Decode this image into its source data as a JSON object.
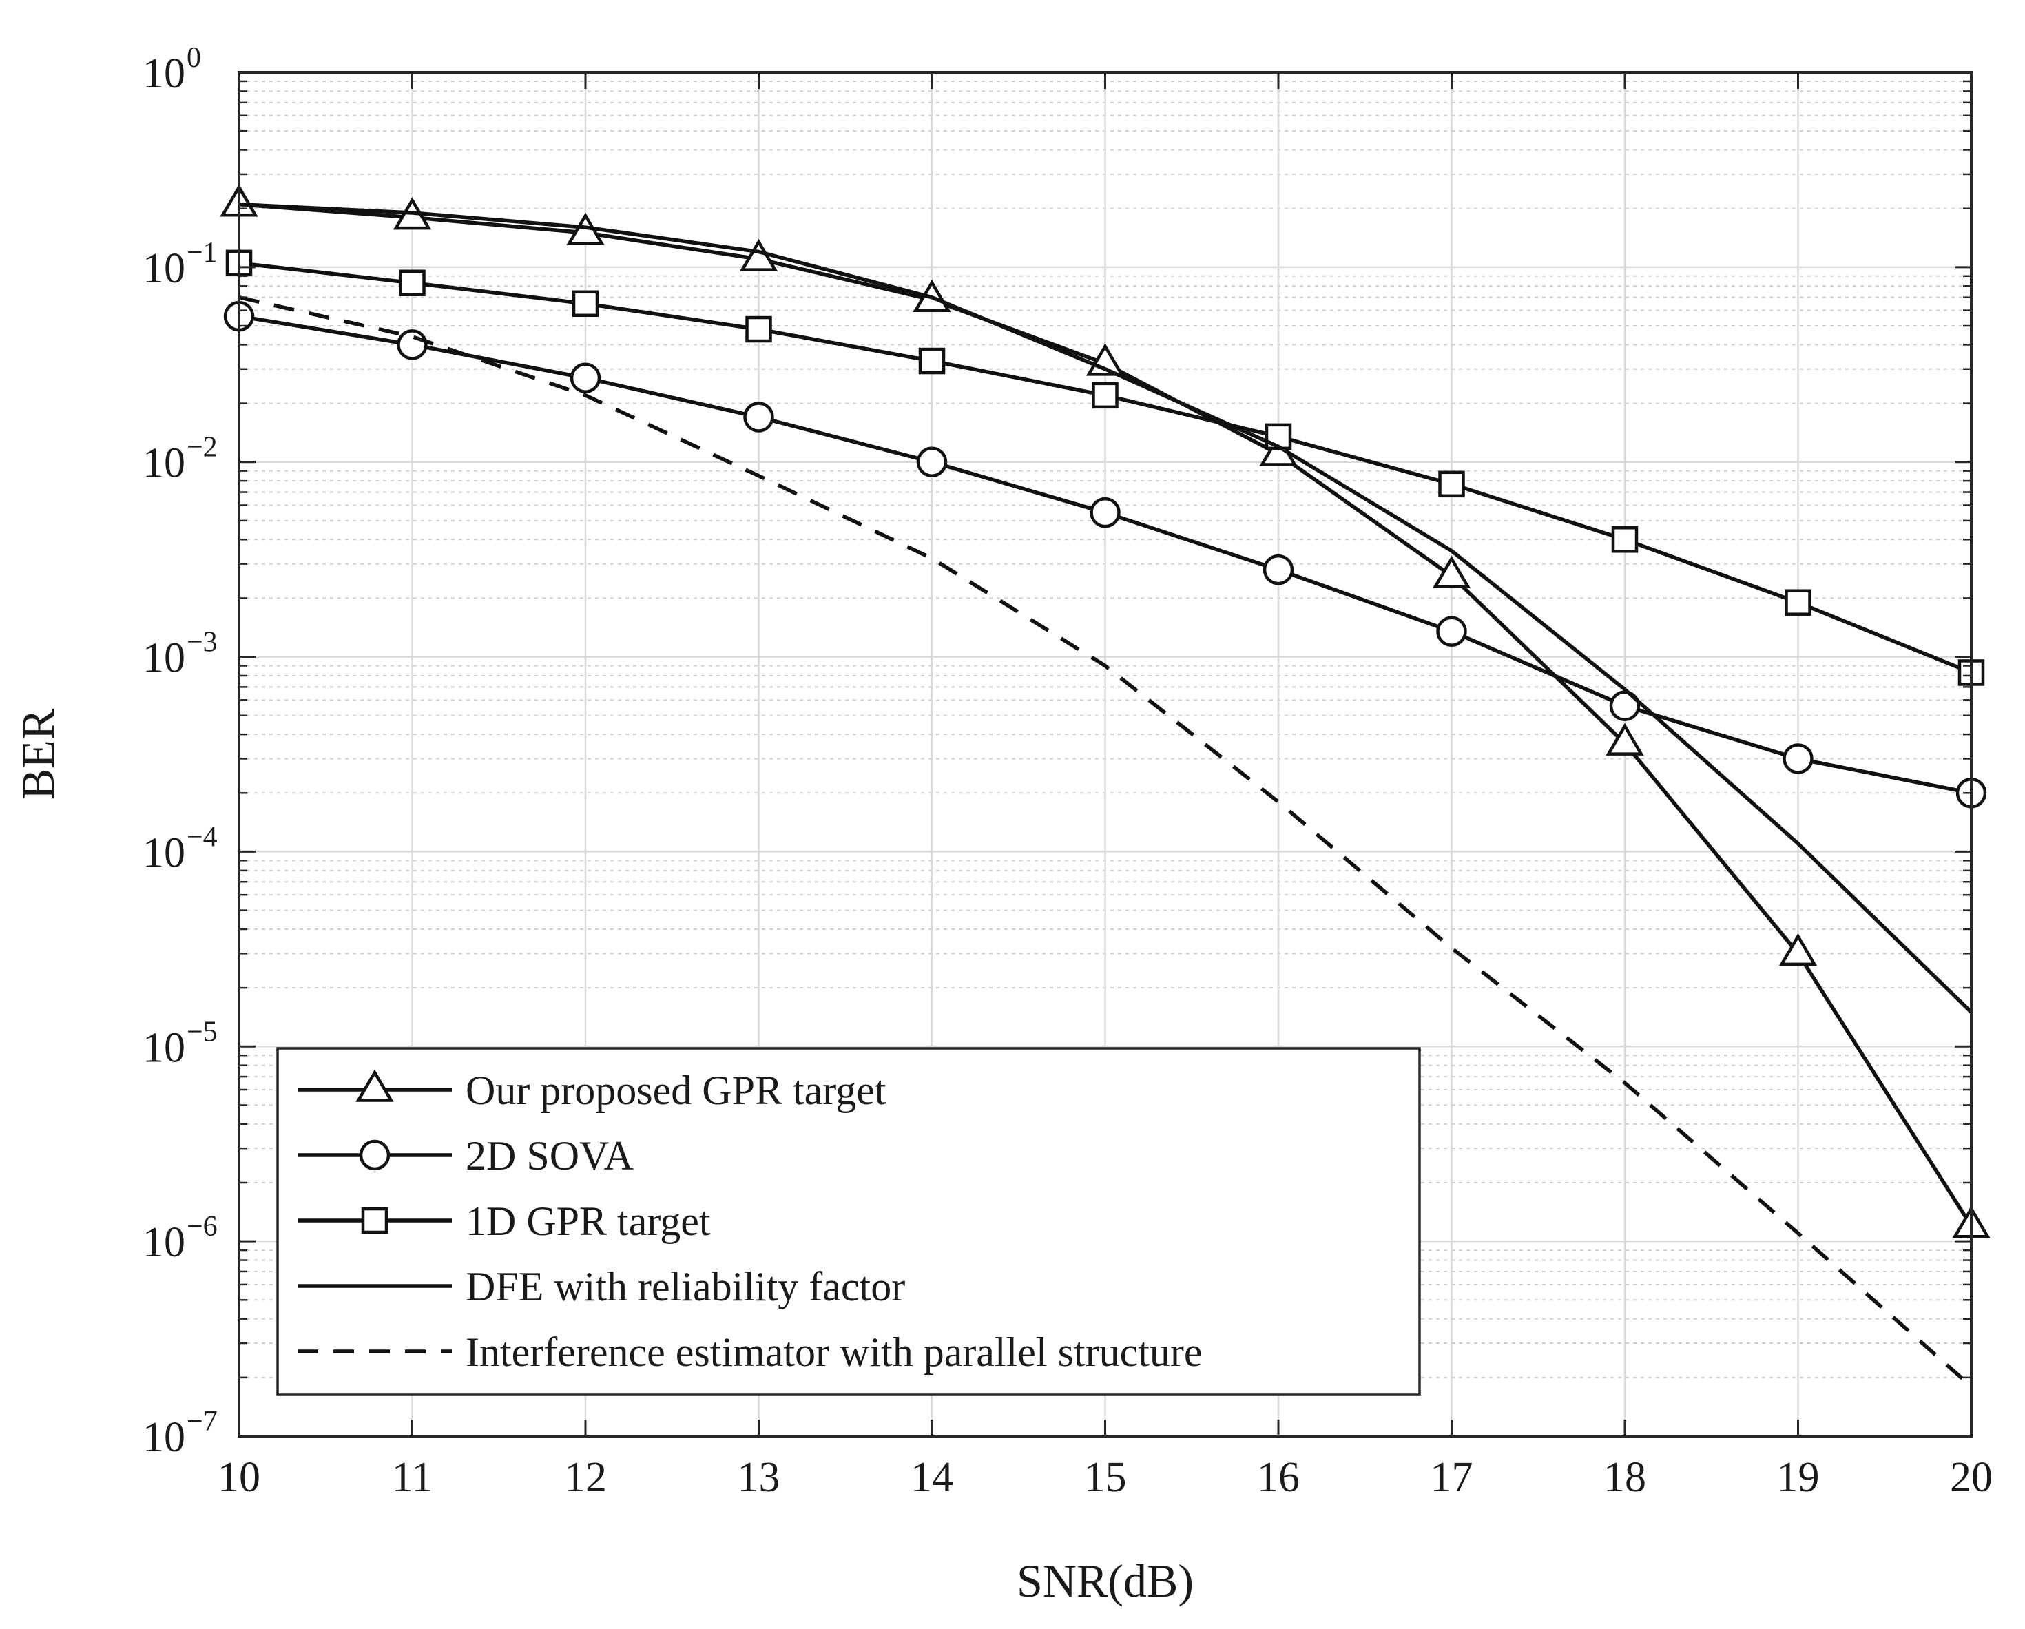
{
  "chart_data": {
    "type": "line",
    "title": "",
    "xlabel": "SNR(dB)",
    "ylabel": "BER",
    "xlim": [
      10,
      20
    ],
    "ylim": [
      1e-07,
      1
    ],
    "yscale": "log",
    "grid": true,
    "legend_position": "bottom-left",
    "x_ticks": [
      10,
      11,
      12,
      13,
      14,
      15,
      16,
      17,
      18,
      19,
      20
    ],
    "y_ticks": [
      {
        "base": "10",
        "exp": "0",
        "value": 1
      },
      {
        "base": "10",
        "exp": "−1",
        "value": 0.1
      },
      {
        "base": "10",
        "exp": "−2",
        "value": 0.01
      },
      {
        "base": "10",
        "exp": "−3",
        "value": 0.001
      },
      {
        "base": "10",
        "exp": "−4",
        "value": 0.0001
      },
      {
        "base": "10",
        "exp": "−5",
        "value": 1e-05
      },
      {
        "base": "10",
        "exp": "−6",
        "value": 1e-06
      },
      {
        "base": "10",
        "exp": "−7",
        "value": 1e-07
      }
    ],
    "x": [
      10,
      11,
      12,
      13,
      14,
      15,
      16,
      17,
      18,
      19,
      20
    ],
    "series": [
      {
        "name": "Our proposed GPR target",
        "marker": "triangle",
        "dash": "solid",
        "values": [
          0.21,
          0.18,
          0.15,
          0.11,
          0.068,
          0.032,
          0.011,
          0.0026,
          0.00036,
          3e-05,
          1.2e-06
        ]
      },
      {
        "name": "2D SOVA",
        "marker": "circle",
        "dash": "solid",
        "values": [
          0.056,
          0.04,
          0.027,
          0.017,
          0.01,
          0.0055,
          0.0028,
          0.00135,
          0.00056,
          0.0003,
          0.0002
        ]
      },
      {
        "name": "1D GPR target",
        "marker": "square",
        "dash": "solid",
        "values": [
          0.105,
          0.083,
          0.065,
          0.048,
          0.033,
          0.022,
          0.0135,
          0.0077,
          0.004,
          0.0019,
          0.00083
        ]
      },
      {
        "name": "DFE with reliability factor",
        "marker": "none",
        "dash": "solid",
        "values": [
          0.21,
          0.19,
          0.16,
          0.12,
          0.07,
          0.03,
          0.012,
          0.0035,
          0.00068,
          0.00011,
          1.5e-05
        ]
      },
      {
        "name": "Interference estimator with parallel structure",
        "marker": "none",
        "dash": "dashed",
        "values": [
          0.07,
          0.044,
          0.022,
          0.0085,
          0.0032,
          0.0009,
          0.00018,
          3.2e-05,
          6.5e-06,
          1.1e-06,
          1.8e-07
        ]
      }
    ]
  }
}
